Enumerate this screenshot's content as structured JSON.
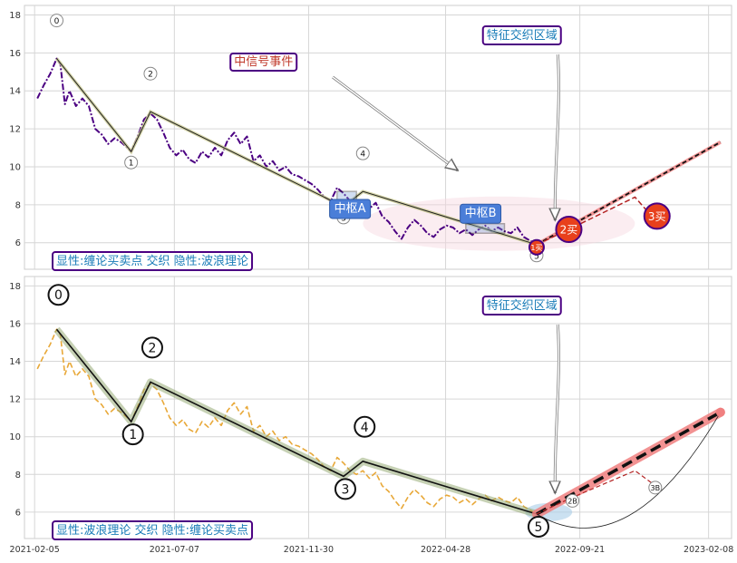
{
  "chart_data": [
    {
      "type": "line",
      "panel": "top",
      "title": "",
      "xlabel": "",
      "ylabel": "",
      "ylim": [
        4.6,
        18.5
      ],
      "yticks": [
        6,
        8,
        10,
        12,
        14,
        16,
        18
      ],
      "grid": true,
      "caption": "显性:缠论买卖点 交织 隐性:波浪理论",
      "price_color": "#4b0082",
      "series": [
        {
          "values": [
            [
              "2021-02-08",
              13.6
            ],
            [
              "2021-02-15",
              14.3
            ],
            [
              "2021-02-22",
              14.9
            ],
            [
              "2021-03-01",
              15.7
            ],
            [
              "2021-03-05",
              15.4
            ],
            [
              "2021-03-10",
              13.3
            ],
            [
              "2021-03-15",
              14.0
            ],
            [
              "2021-03-22",
              13.2
            ],
            [
              "2021-03-29",
              13.6
            ],
            [
              "2021-04-05",
              13.2
            ],
            [
              "2021-04-12",
              12.0
            ],
            [
              "2021-04-19",
              11.7
            ],
            [
              "2021-04-26",
              11.2
            ],
            [
              "2021-05-03",
              11.5
            ],
            [
              "2021-05-10",
              11.3
            ],
            [
              "2021-05-17",
              11.0
            ],
            [
              "2021-05-21",
              10.8
            ],
            [
              "2021-05-28",
              11.6
            ],
            [
              "2021-06-04",
              12.5
            ],
            [
              "2021-06-11",
              12.8
            ],
            [
              "2021-06-18",
              12.5
            ],
            [
              "2021-06-25",
              11.8
            ],
            [
              "2021-07-02",
              11.0
            ],
            [
              "2021-07-09",
              10.6
            ],
            [
              "2021-07-16",
              10.9
            ],
            [
              "2021-07-23",
              10.4
            ],
            [
              "2021-07-30",
              10.2
            ],
            [
              "2021-08-06",
              10.8
            ],
            [
              "2021-08-13",
              10.5
            ],
            [
              "2021-08-20",
              11.0
            ],
            [
              "2021-08-27",
              10.6
            ],
            [
              "2021-09-03",
              11.4
            ],
            [
              "2021-09-10",
              11.8
            ],
            [
              "2021-09-17",
              11.2
            ],
            [
              "2021-09-24",
              11.6
            ],
            [
              "2021-10-01",
              10.3
            ],
            [
              "2021-10-08",
              10.6
            ],
            [
              "2021-10-15",
              10.0
            ],
            [
              "2021-10-22",
              10.3
            ],
            [
              "2021-10-29",
              9.8
            ],
            [
              "2021-11-05",
              10.0
            ],
            [
              "2021-11-12",
              9.6
            ],
            [
              "2021-11-19",
              9.5
            ],
            [
              "2021-11-26",
              9.3
            ],
            [
              "2021-12-03",
              9.1
            ],
            [
              "2021-12-10",
              8.8
            ],
            [
              "2021-12-17",
              8.4
            ],
            [
              "2021-12-24",
              8.2
            ],
            [
              "2021-12-31",
              8.9
            ],
            [
              "2022-01-07",
              8.6
            ],
            [
              "2022-01-14",
              8.2
            ],
            [
              "2022-01-21",
              8.0
            ],
            [
              "2022-01-28",
              8.2
            ],
            [
              "2022-02-04",
              7.8
            ],
            [
              "2022-02-11",
              8.1
            ],
            [
              "2022-02-18",
              7.4
            ],
            [
              "2022-02-25",
              7.1
            ],
            [
              "2022-03-04",
              6.6
            ],
            [
              "2022-03-11",
              6.2
            ],
            [
              "2022-03-18",
              6.8
            ],
            [
              "2022-03-25",
              7.2
            ],
            [
              "2022-04-01",
              6.9
            ],
            [
              "2022-04-08",
              6.5
            ],
            [
              "2022-04-15",
              6.3
            ],
            [
              "2022-04-22",
              6.7
            ],
            [
              "2022-04-29",
              6.9
            ],
            [
              "2022-05-06",
              6.8
            ],
            [
              "2022-05-13",
              6.5
            ],
            [
              "2022-05-20",
              6.7
            ],
            [
              "2022-05-27",
              6.4
            ],
            [
              "2022-06-03",
              6.7
            ],
            [
              "2022-06-10",
              6.9
            ],
            [
              "2022-06-17",
              6.6
            ],
            [
              "2022-06-24",
              6.8
            ],
            [
              "2022-07-01",
              6.6
            ],
            [
              "2022-07-08",
              6.5
            ],
            [
              "2022-07-15",
              6.8
            ],
            [
              "2022-07-22",
              6.3
            ],
            [
              "2022-07-29",
              6.1
            ],
            [
              "2022-08-05",
              5.9
            ]
          ]
        }
      ],
      "xticks": [
        "2021-02-05",
        "2021-07-07",
        "2021-11-30",
        "2022-04-28",
        "2022-09-21",
        "2023-02-08"
      ],
      "wave_points": [
        {
          "label": "0",
          "date": "2021-03-01",
          "value": 15.7
        },
        {
          "label": "1",
          "date": "2021-05-21",
          "value": 10.8
        },
        {
          "label": "2",
          "date": "2021-06-11",
          "value": 12.9
        },
        {
          "label": "3",
          "date": "2022-01-07",
          "value": 7.9
        },
        {
          "label": "4",
          "date": "2022-01-28",
          "value": 8.7
        },
        {
          "label": "5",
          "date": "2022-08-05",
          "value": 5.9
        }
      ],
      "annotations": {
        "signal_event": "中信号事件",
        "feature_zone": "特征交织区域",
        "pivot_a": "中枢A",
        "pivot_b": "中枢B",
        "buy_1": "1买",
        "buy_2": "2买",
        "buy_3": "3买"
      },
      "pivot_boxes": [
        {
          "name": "中枢A",
          "start": "2021-12-31",
          "end": "2022-01-21",
          "low": 7.9,
          "high": 8.7
        },
        {
          "name": "中枢B",
          "start": "2022-05-20",
          "end": "2022-07-01",
          "low": 6.5,
          "high": 7.0
        }
      ],
      "trend_projection": [
        [
          "2022-08-05",
          5.9
        ],
        [
          "2023-02-21",
          11.3
        ]
      ],
      "buy_points": [
        {
          "label": "1买",
          "date": "2022-08-05",
          "value": 5.9
        },
        {
          "label": "2买",
          "date": "2022-09-09",
          "value": 6.7
        },
        {
          "label": "3买",
          "date": "2022-12-08",
          "value": 7.4
        }
      ]
    },
    {
      "type": "line",
      "panel": "bottom",
      "title": "",
      "xlabel": "",
      "ylabel": "",
      "ylim": [
        4.6,
        18.5
      ],
      "yticks": [
        6,
        8,
        10,
        12,
        14,
        16,
        18
      ],
      "grid": true,
      "caption": "显性:波浪理论 交织 隐性:缠论买卖点",
      "price_color": "#e8a838",
      "xticks": [
        "2021-02-05",
        "2021-07-07",
        "2021-11-30",
        "2022-04-28",
        "2022-09-21",
        "2023-02-08"
      ],
      "wave_points": [
        {
          "label": "0",
          "date": "2021-03-01",
          "value": 15.7
        },
        {
          "label": "1",
          "date": "2021-05-21",
          "value": 10.8
        },
        {
          "label": "2",
          "date": "2021-06-11",
          "value": 12.9
        },
        {
          "label": "3",
          "date": "2022-01-07",
          "value": 7.9
        },
        {
          "label": "4",
          "date": "2022-01-28",
          "value": 8.7
        },
        {
          "label": "5",
          "date": "2022-08-05",
          "value": 5.9
        }
      ],
      "annotations": {
        "feature_zone": "特征交织区域",
        "buy_2_small": "2B",
        "buy_3_small": "3B"
      },
      "trend_projection": [
        [
          "2022-08-05",
          5.9
        ],
        [
          "2023-02-21",
          11.3
        ]
      ]
    }
  ]
}
